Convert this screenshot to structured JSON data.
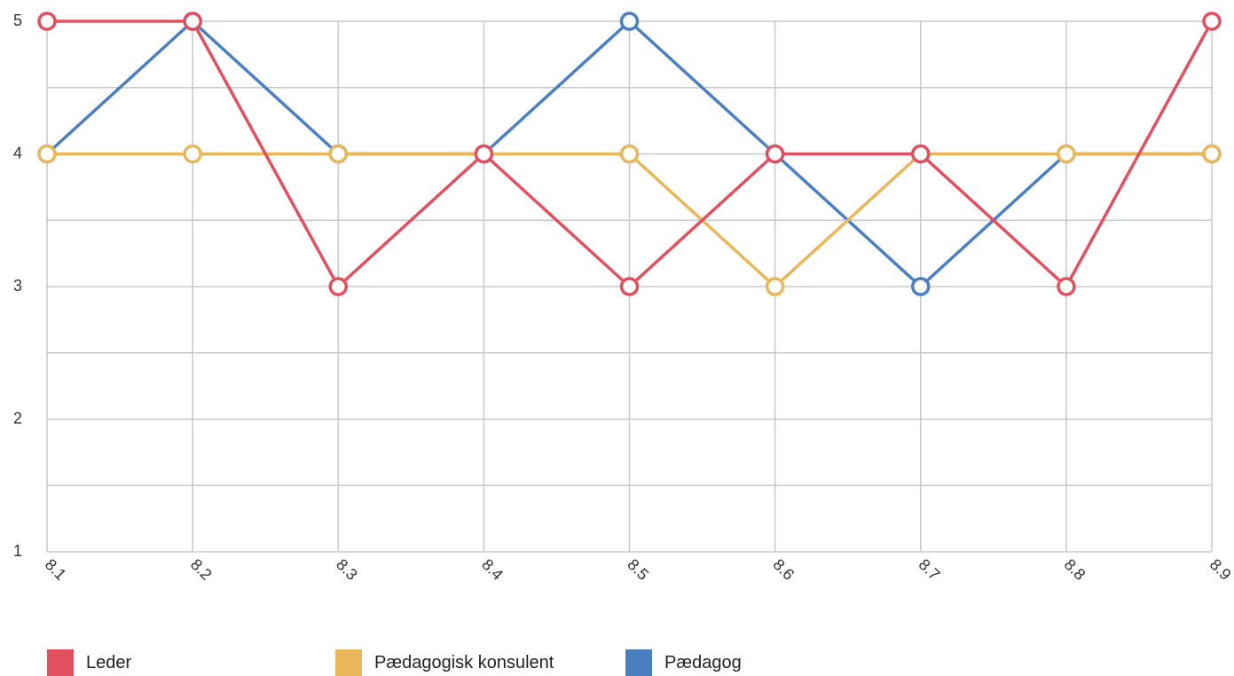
{
  "chart_data": {
    "type": "line",
    "title": "",
    "xlabel": "",
    "ylabel": "",
    "categories": [
      "8.1",
      "8.2",
      "8.3",
      "8.4",
      "8.5",
      "8.6",
      "8.7",
      "8.8",
      "8.9"
    ],
    "ylim": [
      1,
      5
    ],
    "yticks": [
      1,
      2,
      3,
      4,
      5
    ],
    "grid": true,
    "minor_grid_y": true,
    "legend_position": "bottom",
    "marker": "hollow-circle",
    "series": [
      {
        "name": "Leder",
        "color": "#e0505e",
        "values": [
          5,
          5,
          3,
          4,
          3,
          4,
          4,
          3,
          5
        ]
      },
      {
        "name": "Pædagogisk konsulent",
        "color": "#eab65a",
        "values": [
          4,
          4,
          4,
          4,
          4,
          3,
          4,
          4,
          4
        ]
      },
      {
        "name": "Pædagog",
        "color": "#4a80c0",
        "values": [
          4,
          5,
          4,
          4,
          5,
          4,
          3,
          4,
          4
        ]
      }
    ],
    "draw_order": [
      2,
      1,
      0
    ]
  }
}
